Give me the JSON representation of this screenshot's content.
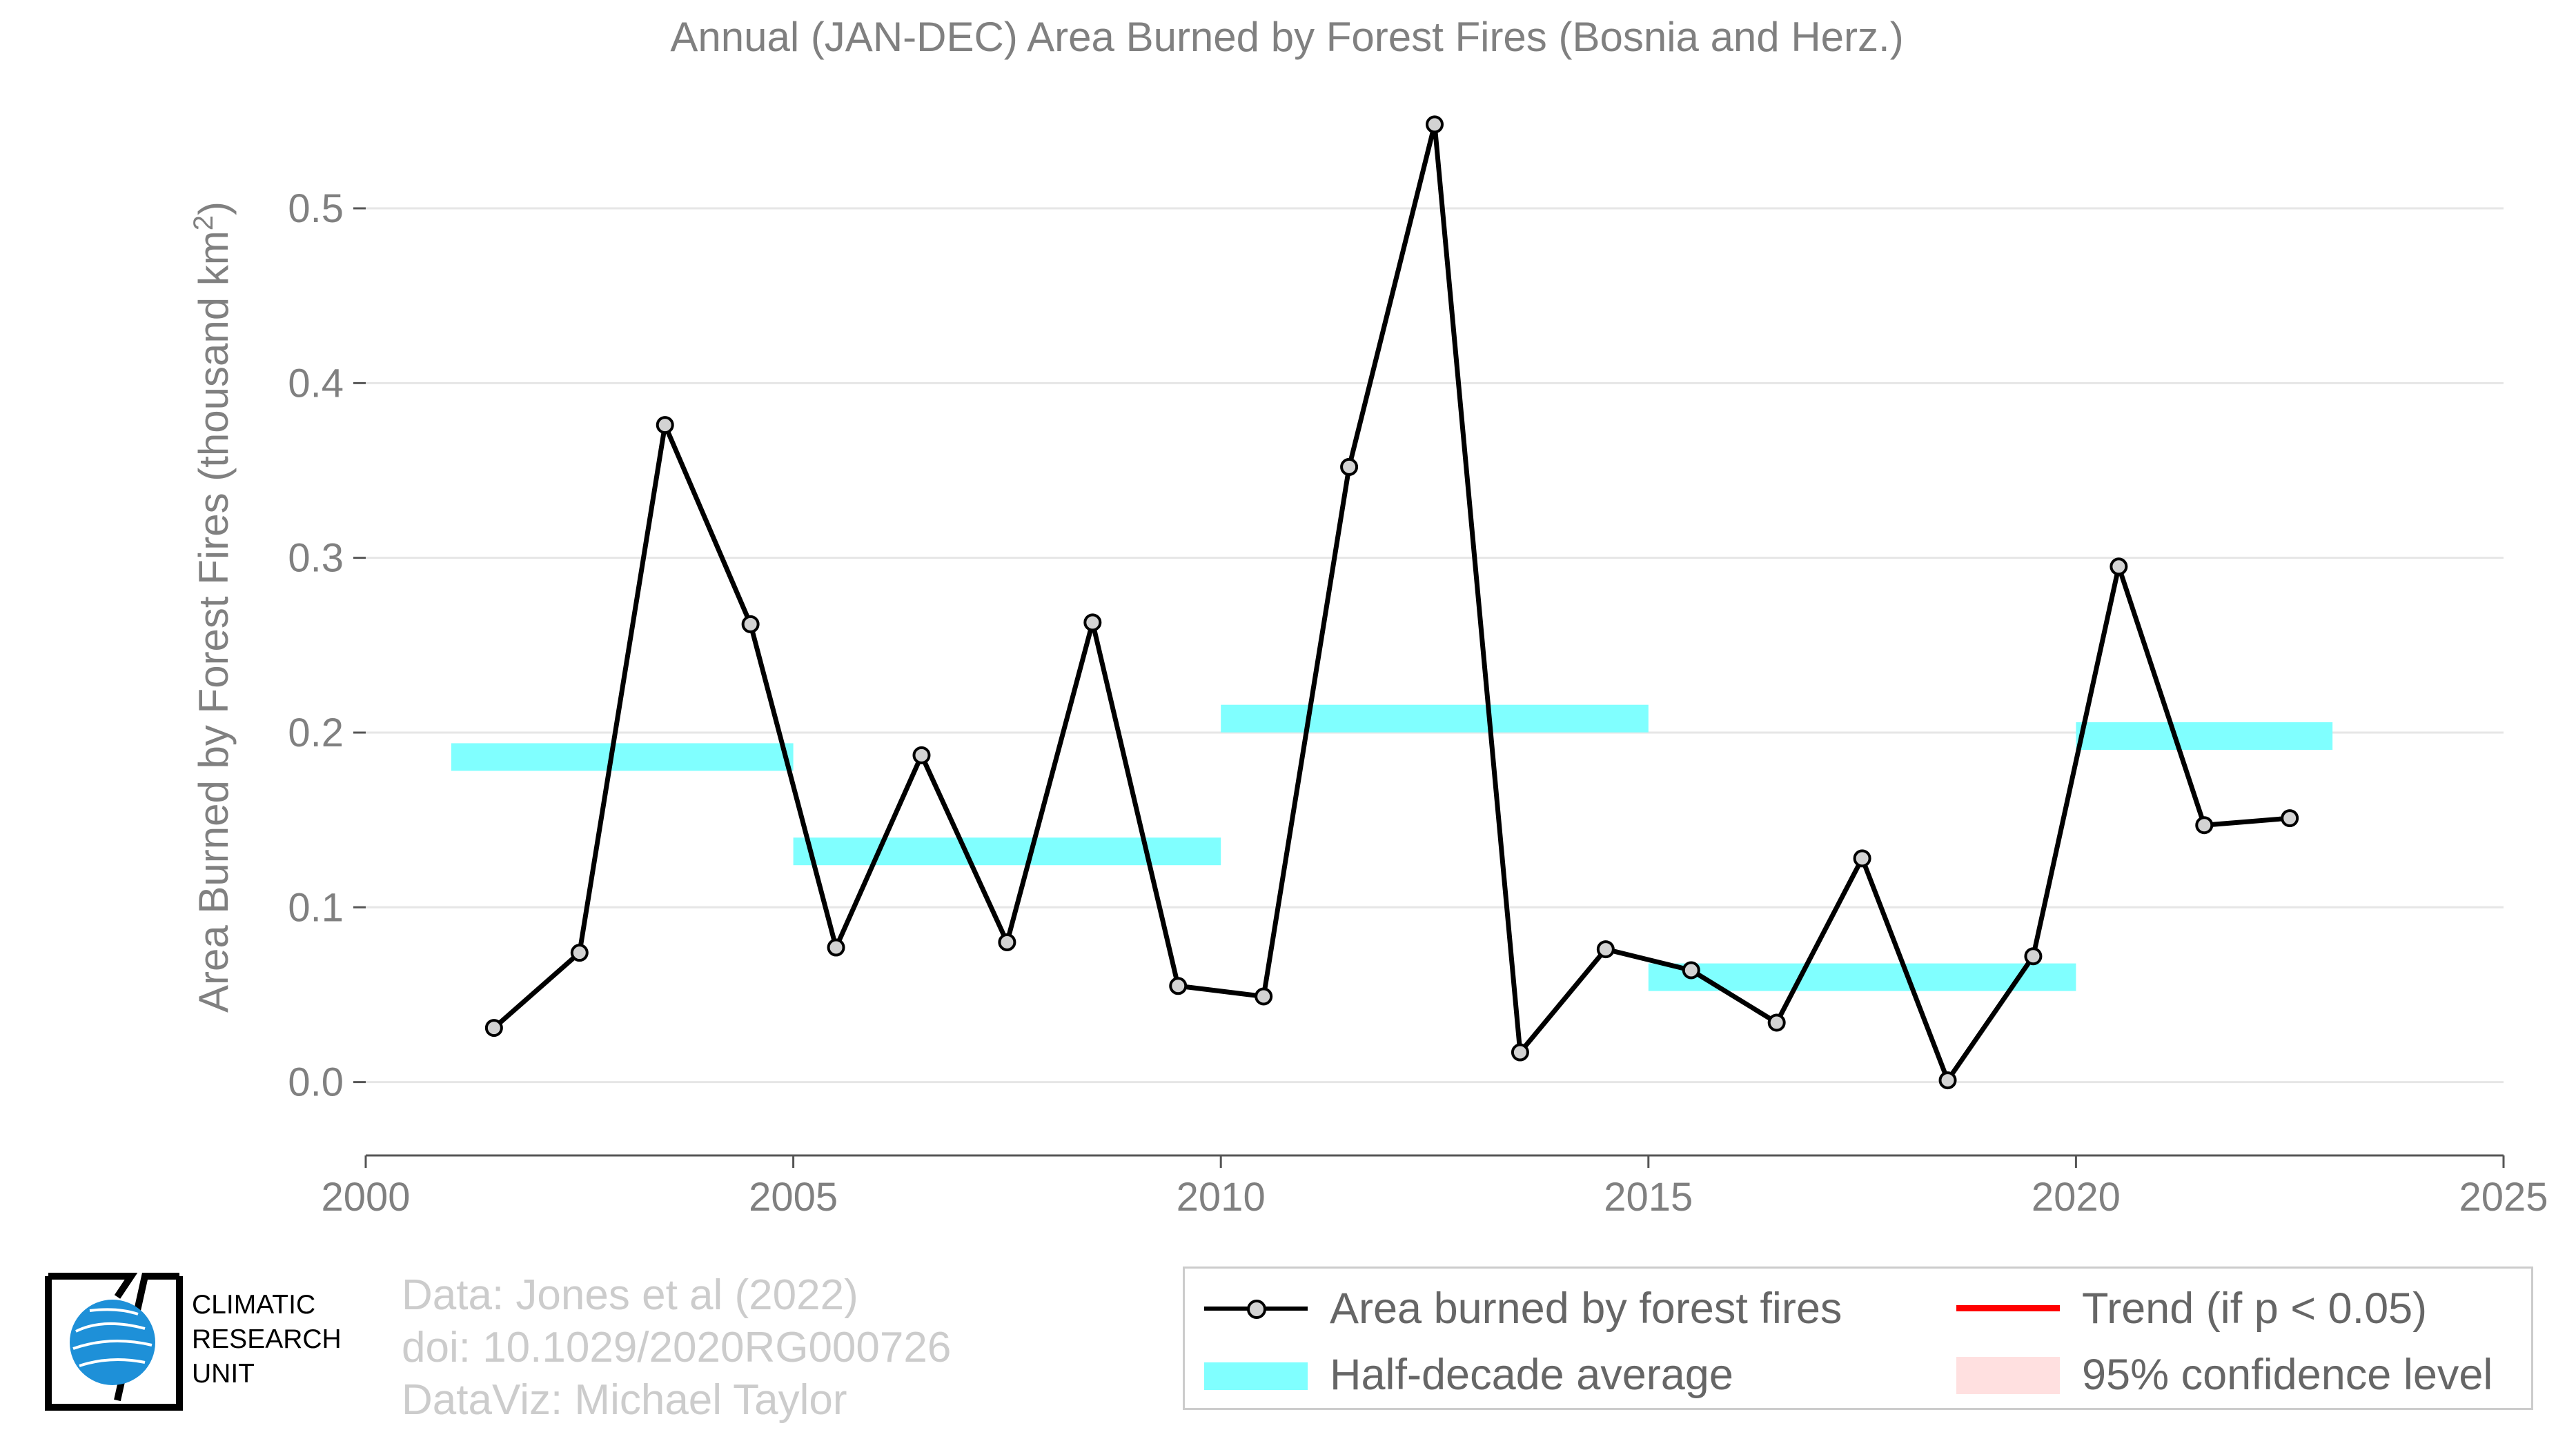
{
  "chart_data": {
    "type": "line",
    "title": "Annual (JAN-DEC) Area Burned by Forest Fires (Bosnia and Herz.)",
    "ylabel": "Area Burned by Forest Fires (thousand km",
    "ylabel_sup": "2",
    "ylabel_close": ")",
    "xlim": [
      2000,
      2025
    ],
    "ylim": [
      -0.042,
      0.56
    ],
    "xticks": [
      2000,
      2005,
      2010,
      2015,
      2020,
      2025
    ],
    "yticks": [
      0.0,
      0.1,
      0.2,
      0.3,
      0.4,
      0.5
    ],
    "ytick_labels": [
      "0.0",
      "0.1",
      "0.2",
      "0.3",
      "0.4",
      "0.5"
    ],
    "grid": true,
    "series": [
      {
        "name": "Area burned by forest fires",
        "color": "#000000",
        "marker_fill": "#d3d3d3",
        "x": [
          2001.5,
          2002.5,
          2003.5,
          2004.5,
          2005.5,
          2006.5,
          2007.5,
          2008.5,
          2009.5,
          2010.5,
          2011.5,
          2012.5,
          2013.5,
          2014.5,
          2015.5,
          2016.5,
          2017.5,
          2018.5,
          2019.5,
          2020.5,
          2021.5,
          2022.5
        ],
        "values": [
          0.031,
          0.074,
          0.376,
          0.262,
          0.077,
          0.187,
          0.08,
          0.263,
          0.055,
          0.049,
          0.352,
          0.548,
          0.017,
          0.076,
          0.064,
          0.034,
          0.128,
          0.001,
          0.072,
          0.295,
          0.147,
          0.151
        ]
      }
    ],
    "half_decade_average": {
      "name": "Half-decade average",
      "color": "#80ffff",
      "segments": [
        {
          "x": [
            2001,
            2005
          ],
          "value": 0.186
        },
        {
          "x": [
            2005,
            2010
          ],
          "value": 0.132
        },
        {
          "x": [
            2010,
            2015
          ],
          "value": 0.208
        },
        {
          "x": [
            2015,
            2020
          ],
          "value": 0.06
        },
        {
          "x": [
            2020,
            2023
          ],
          "value": 0.198
        }
      ]
    }
  },
  "legend": {
    "items": [
      {
        "label": "Area burned by forest fires",
        "key": "line-marker",
        "color": "#000000"
      },
      {
        "label": "Trend (if p < 0.05)",
        "key": "line",
        "color": "#ff0000"
      },
      {
        "label": "Half-decade average",
        "key": "band",
        "color": "#80ffff"
      },
      {
        "label": "95% confidence level",
        "key": "band",
        "color": "#ffe0e0"
      }
    ]
  },
  "credits": {
    "data": "Data: Jones et al (2022)",
    "doi": "doi: 10.1029/2020RG000726",
    "dataviz": "DataViz: Michael Taylor"
  },
  "logo": {
    "line1": "CLIMATIC",
    "line2": "RESEARCH",
    "line3": "UNIT",
    "globe_color": "#1e90d8"
  }
}
